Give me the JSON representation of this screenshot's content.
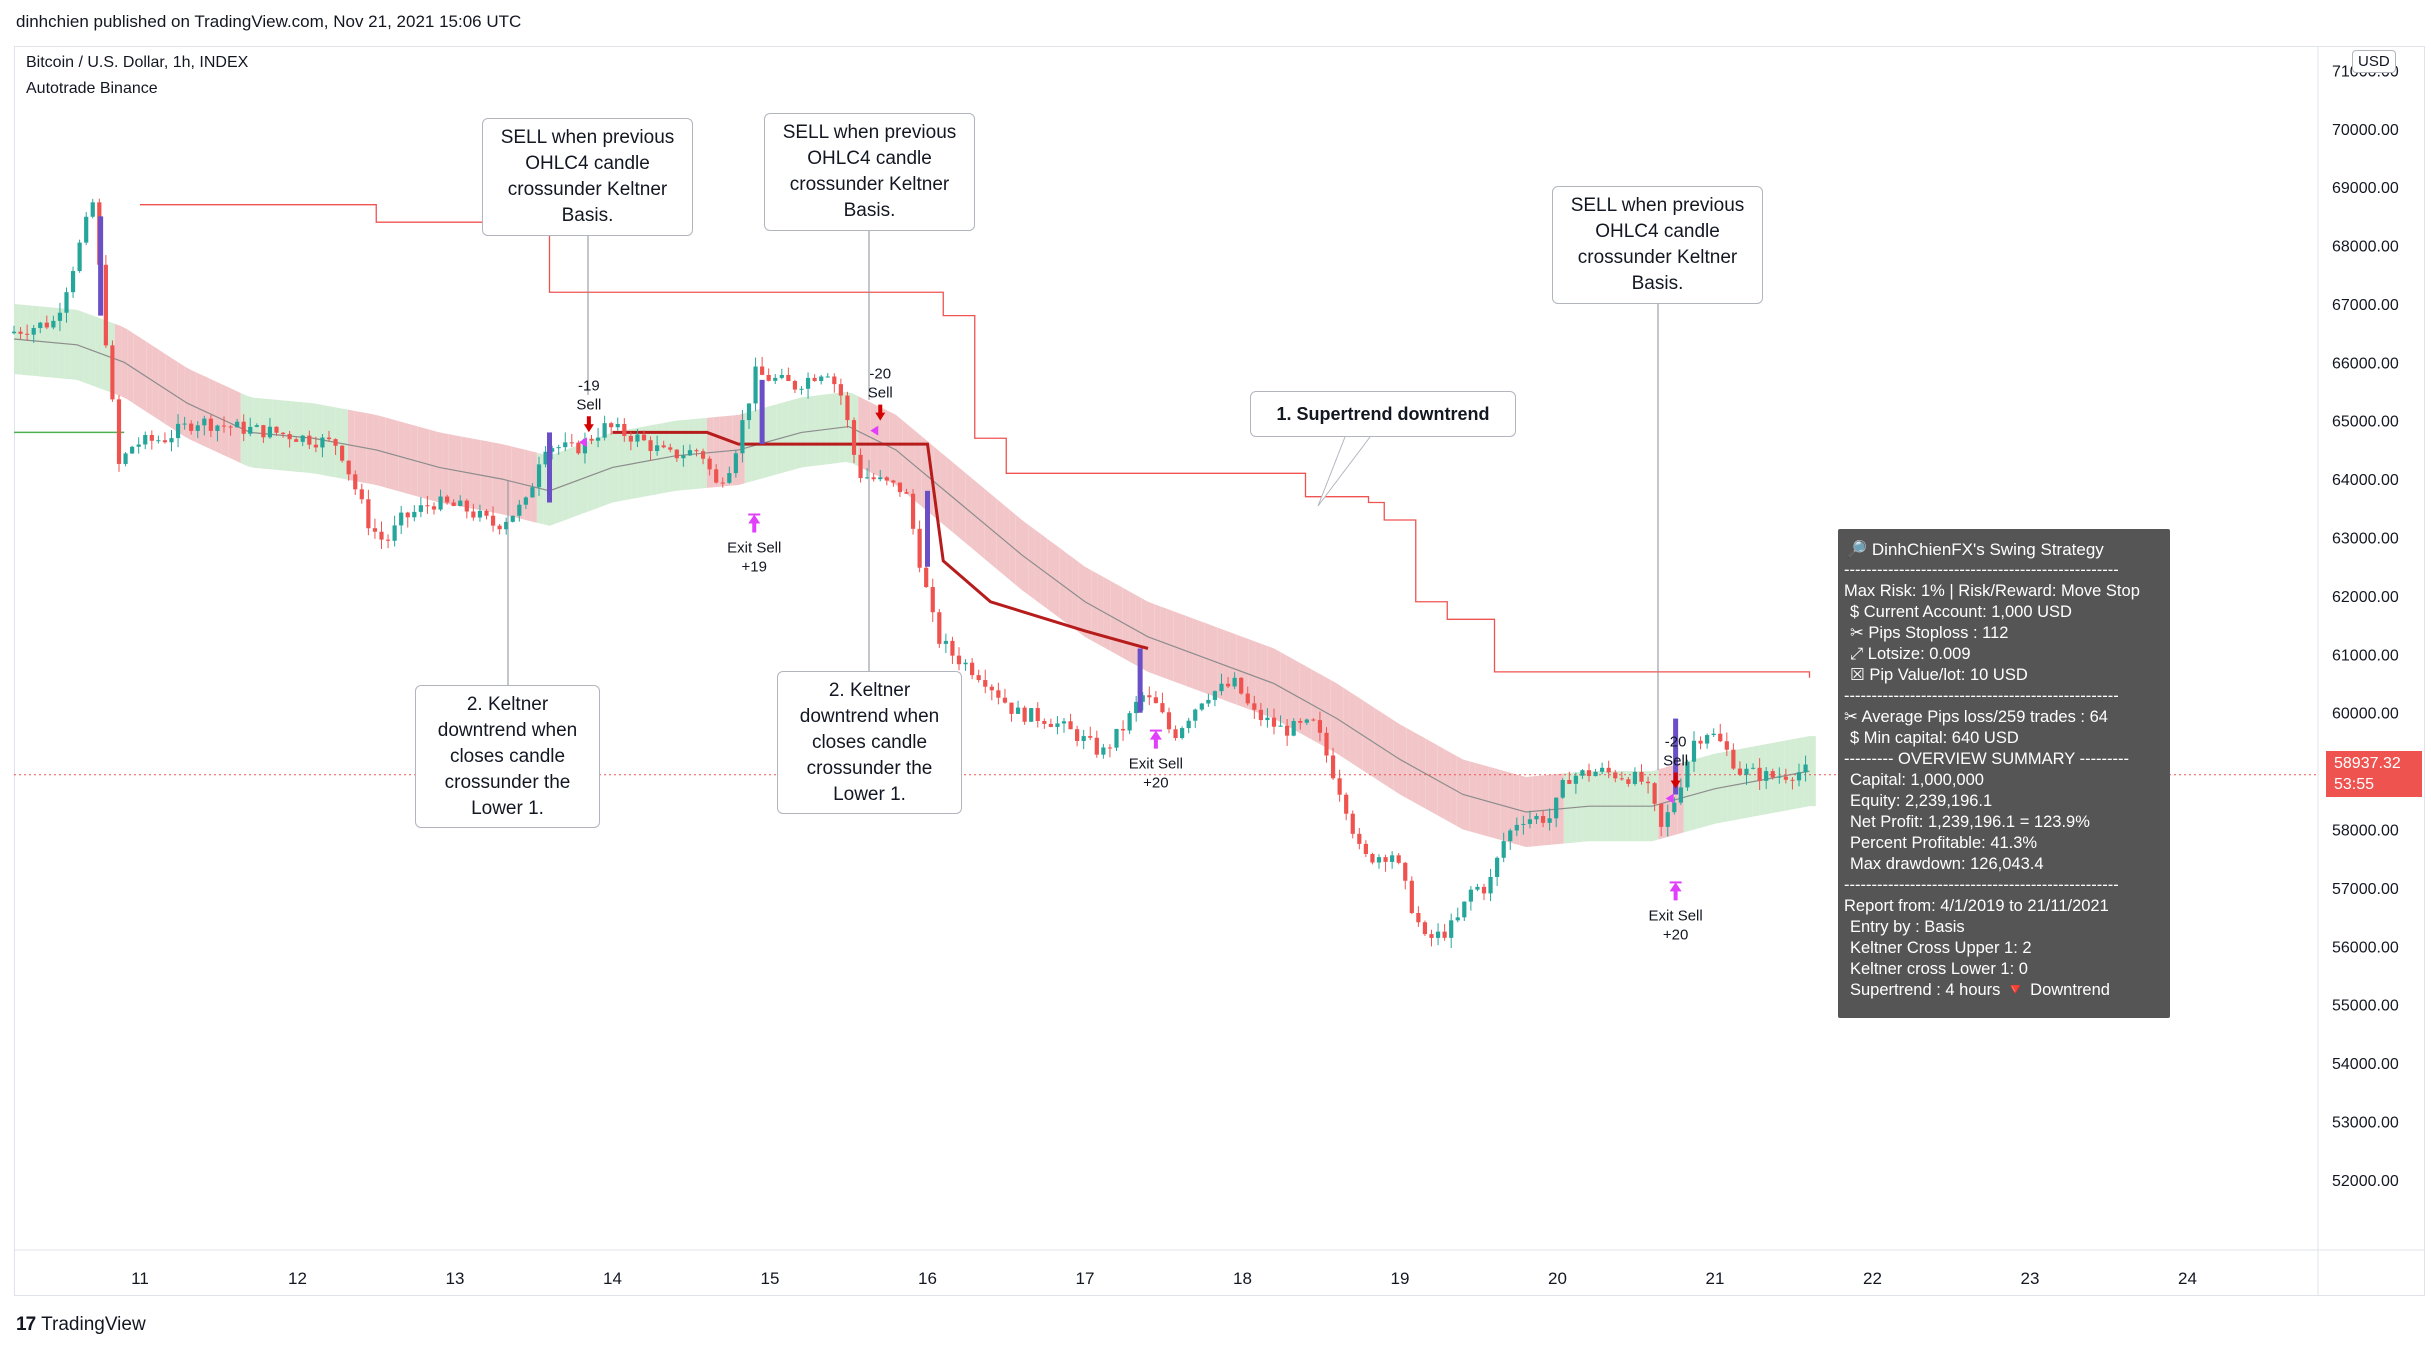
{
  "header": {
    "publisher_line": "dinhchien published on TradingView.com, Nov 21, 2021 15:06 UTC"
  },
  "symbol": {
    "title": "Bitcoin / U.S. Dollar, 1h, INDEX",
    "indicator": "Autotrade Binance",
    "currency": "USD"
  },
  "last_price": {
    "value": "58937.32",
    "countdown": "53:55"
  },
  "branding": {
    "logo_mark": "17",
    "name": "TradingView"
  },
  "colors": {
    "up": "#26a69a",
    "down": "#ef5350",
    "signal_up": "#6a4fc7",
    "supertrend": "#ef5350",
    "trailing_stop": "#b71c1c",
    "band_down": "#f2c6c8",
    "band_up": "#d3ecd4",
    "basis": "#8c8c8c",
    "marker": "#e040fb"
  },
  "callouts": {
    "c1": [
      "SELL when previous",
      "OHLC4 candle",
      "crossunder Keltner",
      "Basis."
    ],
    "c2": [
      "SELL when previous",
      "OHLC4 candle",
      "crossunder Keltner",
      "Basis."
    ],
    "c3": [
      "SELL when previous",
      "OHLC4 candle",
      "crossunder Keltner",
      "Basis."
    ],
    "c4": [
      "2. Keltner",
      "downtrend when",
      "closes candle",
      "crossunder the",
      "Lower 1."
    ],
    "c5": [
      "2. Keltner",
      "downtrend when",
      "closes candle",
      "crossunder the",
      "Lower 1."
    ],
    "c6": [
      "1. Supertrend downtrend"
    ]
  },
  "signals": [
    {
      "label_top": "-19",
      "label_bottom": "Sell"
    },
    {
      "label_top": "-20",
      "label_bottom": "Sell"
    },
    {
      "label_top": "-20",
      "label_bottom": "Sell"
    }
  ],
  "exits": [
    {
      "label_top": "Exit Sell",
      "label_bottom": "+19"
    },
    {
      "label_top": "Exit Sell",
      "label_bottom": "+20"
    },
    {
      "label_top": "Exit Sell",
      "label_bottom": "+20"
    }
  ],
  "strategy_box": {
    "title": "DinhChienFX's Swing Strategy",
    "lines": [
      "--------------------------------------------------",
      "Max Risk: 1% | Risk/Reward: Move Stop",
      "$ Current Account: 1,000 USD",
      "✂ Pips Stoploss : 112",
      "⤢ Lotsize: 0.009",
      "☒ Pip Value/lot: 10 USD",
      "--------------------------------------------------",
      "✂ Average Pips loss/259 trades : 64",
      "$ Min capital: 640 USD",
      "--------- OVERVIEW SUMMARY ---------",
      "Capital: 1,000,000",
      "Equity: 2,239,196.1",
      "Net Profit: 1,239,196.1 = 123.9%",
      "Percent Profitable: 41.3%",
      "Max drawdown: 126,043.4",
      "--------------------------------------------------",
      "Report from: 4/1/2019 to 21/11/2021",
      "Entry by : Basis",
      "Keltner Cross Upper 1: 2",
      "Keltner cross Lower 1: 0",
      "Supertrend : 4 hours",
      "Downtrend"
    ]
  },
  "chart_data": {
    "type": "candlestick",
    "title": "Bitcoin / U.S. Dollar, 1h, INDEX",
    "ylim": [
      50800,
      71400
    ],
    "price_ticks": [
      71000,
      70000,
      69000,
      68000,
      67000,
      66000,
      65000,
      64000,
      63000,
      62000,
      61000,
      60000,
      59000,
      58000,
      57000,
      56000,
      55000,
      54000,
      53000,
      52000
    ],
    "price_tick_labels": [
      "71000.00",
      "70000.00",
      "69000.00",
      "68000.00",
      "67000.00",
      "66000.00",
      "65000.00",
      "64000.00",
      "63000.00",
      "62000.00",
      "61000.00",
      "60000.00",
      "59000.00",
      "58000.00",
      "57000.00",
      "56000.00",
      "55000.00",
      "54000.00",
      "53000.00",
      "52000.00"
    ],
    "x_ticks": [
      "11",
      "12",
      "13",
      "14",
      "15",
      "16",
      "17",
      "18",
      "19",
      "20",
      "21",
      "22",
      "23",
      "24"
    ],
    "xlim_days": [
      10.2,
      24.8
    ],
    "price_path": [
      [
        10.2,
        66500
      ],
      [
        10.5,
        66700
      ],
      [
        10.6,
        67500
      ],
      [
        10.75,
        68800
      ],
      [
        10.8,
        67000
      ],
      [
        10.85,
        65800
      ],
      [
        10.9,
        64200
      ],
      [
        11.0,
        64600
      ],
      [
        11.2,
        64700
      ],
      [
        11.4,
        65000
      ],
      [
        11.6,
        64900
      ],
      [
        11.9,
        64800
      ],
      [
        12.1,
        64700
      ],
      [
        12.3,
        64600
      ],
      [
        12.4,
        63900
      ],
      [
        12.5,
        63200
      ],
      [
        12.6,
        62900
      ],
      [
        12.7,
        63300
      ],
      [
        12.9,
        63600
      ],
      [
        13.1,
        63500
      ],
      [
        13.3,
        63200
      ],
      [
        13.5,
        63600
      ],
      [
        13.6,
        64600
      ],
      [
        13.8,
        64500
      ],
      [
        14.0,
        64900
      ],
      [
        14.2,
        64700
      ],
      [
        14.4,
        64400
      ],
      [
        14.6,
        64500
      ],
      [
        14.7,
        63900
      ],
      [
        14.8,
        64300
      ],
      [
        14.95,
        65800
      ],
      [
        15.2,
        65600
      ],
      [
        15.4,
        65900
      ],
      [
        15.5,
        65400
      ],
      [
        15.6,
        64100
      ],
      [
        15.7,
        64000
      ],
      [
        15.9,
        63800
      ],
      [
        16.0,
        62500
      ],
      [
        16.1,
        61300
      ],
      [
        16.2,
        61000
      ],
      [
        16.4,
        60600
      ],
      [
        16.6,
        60000
      ],
      [
        16.8,
        59900
      ],
      [
        17.0,
        59600
      ],
      [
        17.15,
        59300
      ],
      [
        17.3,
        59800
      ],
      [
        17.4,
        60300
      ],
      [
        17.5,
        60100
      ],
      [
        17.6,
        59600
      ],
      [
        17.8,
        60300
      ],
      [
        18.0,
        60500
      ],
      [
        18.1,
        60000
      ],
      [
        18.3,
        59700
      ],
      [
        18.5,
        59800
      ],
      [
        18.6,
        59100
      ],
      [
        18.7,
        58400
      ],
      [
        18.8,
        57500
      ],
      [
        19.0,
        57600
      ],
      [
        19.1,
        56800
      ],
      [
        19.2,
        56100
      ],
      [
        19.3,
        56200
      ],
      [
        19.4,
        56400
      ],
      [
        19.5,
        57000
      ],
      [
        19.6,
        57000
      ],
      [
        19.7,
        57800
      ],
      [
        19.8,
        58200
      ],
      [
        20.0,
        58200
      ],
      [
        20.1,
        58900
      ],
      [
        20.3,
        59000
      ],
      [
        20.5,
        58900
      ],
      [
        20.6,
        58800
      ],
      [
        20.7,
        58000
      ],
      [
        20.8,
        58600
      ],
      [
        20.9,
        59500
      ],
      [
        21.0,
        59700
      ],
      [
        21.1,
        59400
      ],
      [
        21.2,
        59000
      ],
      [
        21.4,
        58900
      ],
      [
        21.6,
        59000
      ]
    ],
    "basis_path": [
      [
        10.2,
        66400
      ],
      [
        10.6,
        66300
      ],
      [
        10.9,
        66000
      ],
      [
        11.3,
        65300
      ],
      [
        11.7,
        64800
      ],
      [
        12.1,
        64700
      ],
      [
        12.5,
        64500
      ],
      [
        12.9,
        64200
      ],
      [
        13.3,
        64000
      ],
      [
        13.6,
        63800
      ],
      [
        14.0,
        64200
      ],
      [
        14.4,
        64400
      ],
      [
        14.8,
        64500
      ],
      [
        15.2,
        64800
      ],
      [
        15.5,
        64900
      ],
      [
        15.8,
        64500
      ],
      [
        16.2,
        63600
      ],
      [
        16.6,
        62700
      ],
      [
        17.0,
        61900
      ],
      [
        17.4,
        61300
      ],
      [
        17.8,
        60900
      ],
      [
        18.2,
        60500
      ],
      [
        18.6,
        59900
      ],
      [
        19.0,
        59200
      ],
      [
        19.4,
        58600
      ],
      [
        19.8,
        58300
      ],
      [
        20.2,
        58400
      ],
      [
        20.6,
        58400
      ],
      [
        21.0,
        58700
      ],
      [
        21.4,
        58900
      ],
      [
        21.6,
        59000
      ]
    ],
    "band_halfwidth": 600,
    "supertrend": [
      [
        11.0,
        68700
      ],
      [
        12.1,
        68700
      ],
      [
        12.5,
        68400
      ],
      [
        13.6,
        67200
      ],
      [
        15.1,
        67200
      ],
      [
        16.1,
        66800
      ],
      [
        16.3,
        64700
      ],
      [
        16.5,
        64100
      ],
      [
        18.4,
        63700
      ],
      [
        18.8,
        63600
      ],
      [
        18.9,
        63300
      ],
      [
        19.1,
        61900
      ],
      [
        19.3,
        61600
      ],
      [
        19.6,
        60700
      ],
      [
        21.6,
        60600
      ]
    ],
    "trailing_stop": [
      [
        14.0,
        64800
      ],
      [
        14.6,
        64800
      ],
      [
        14.8,
        64600
      ],
      [
        15.0,
        64600
      ],
      [
        16.0,
        64600
      ],
      [
        16.1,
        62600
      ],
      [
        16.4,
        61900
      ],
      [
        17.0,
        61400
      ],
      [
        17.4,
        61100
      ]
    ],
    "entries": [
      {
        "day": 13.85,
        "price": 64700
      },
      {
        "day": 15.7,
        "price": 64900
      },
      {
        "day": 20.75,
        "price": 58600
      }
    ],
    "exits_at": [
      {
        "day": 14.9,
        "price": 63600
      },
      {
        "day": 17.45,
        "price": 59900
      },
      {
        "day": 20.75,
        "price": 57300
      }
    ],
    "last_price": 58937.32
  }
}
